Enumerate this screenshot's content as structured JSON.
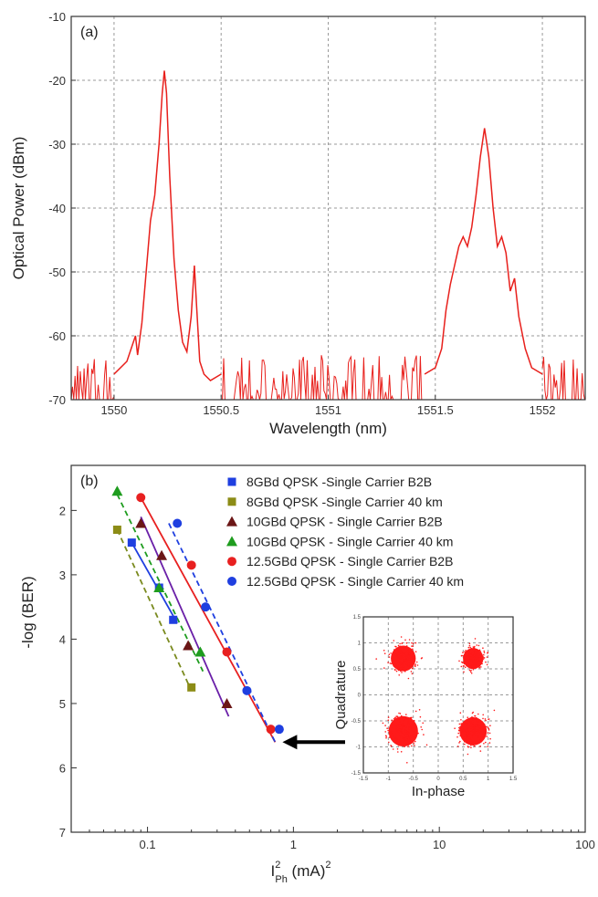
{
  "chart_data": [
    {
      "type": "line",
      "panel_label": "(a)",
      "xlabel": "Wavelength (nm)",
      "ylabel": "Optical Power (dBm)",
      "xlim": [
        1549.8,
        1552.2
      ],
      "ylim": [
        -70,
        -10
      ],
      "xticks": [
        1550,
        1550.5,
        1551,
        1551.5,
        1552
      ],
      "xtick_labels": [
        "1550",
        "1550.5",
        "1551",
        "1551.5",
        "1552"
      ],
      "yticks": [
        -70,
        -60,
        -50,
        -40,
        -30,
        -20,
        -10
      ],
      "ytick_labels": [
        "-70",
        "-60",
        "-50",
        "-40",
        "-30",
        "-20",
        "-10"
      ],
      "grid": true,
      "line_color": "#e8201c",
      "series": [
        {
          "x": [
            1550.0,
            1550.06,
            1550.08,
            1550.1,
            1550.11,
            1550.13,
            1550.15,
            1550.17,
            1550.19,
            1550.21,
            1550.225,
            1550.235,
            1550.245,
            1550.26,
            1550.28,
            1550.3,
            1550.32,
            1550.34,
            1550.36,
            1550.375,
            1550.385,
            1550.4,
            1550.42,
            1550.45,
            1550.5,
            1551.45,
            1551.5,
            1551.53,
            1551.55,
            1551.57,
            1551.59,
            1551.61,
            1551.63,
            1551.65,
            1551.67,
            1551.69,
            1551.71,
            1551.73,
            1551.75,
            1551.77,
            1551.79,
            1551.81,
            1551.83,
            1551.85,
            1551.87,
            1551.89,
            1551.92,
            1551.95,
            1552.0
          ],
          "y": [
            -66,
            -64,
            -62,
            -60,
            -63,
            -58,
            -50,
            -42,
            -38,
            -30,
            -22,
            -18.5,
            -22,
            -35,
            -48,
            -56,
            -61,
            -62.5,
            -57,
            -49,
            -55,
            -64,
            -66,
            -67,
            -66,
            -66,
            -65,
            -62,
            -56,
            -52,
            -49,
            -46,
            -44.5,
            -46,
            -43,
            -38,
            -32,
            -27.5,
            -32,
            -40,
            -46,
            -44.5,
            -47,
            -53,
            -51,
            -57,
            -62,
            -65,
            -66
          ]
        }
      ],
      "noise_floor": [
        -70,
        -63
      ]
    },
    {
      "type": "scatter",
      "panel_label": "(b)",
      "xlabel_main": "I",
      "xlabel_super": "2",
      "xlabel_sub": "Ph",
      "xlabel_tail": " (mA)",
      "xlabel_tail_super": "2",
      "ylabel": "-log (BER)",
      "x_scale": "log",
      "xlim": [
        0.03,
        100
      ],
      "ylim": [
        1.3,
        7
      ],
      "y_inverted": true,
      "xticks": [
        0.1,
        1,
        10,
        100
      ],
      "xtick_labels": [
        "0.1",
        "1",
        "10",
        "100"
      ],
      "yticks": [
        2,
        3,
        4,
        5,
        6,
        7
      ],
      "ytick_labels": [
        "2",
        "3",
        "4",
        "5",
        "6",
        "7"
      ],
      "legend_position": "top-right",
      "series": [
        {
          "name": "8GBd QPSK -Single Carrier B2B",
          "marker": "square",
          "color": "#1f3fe0",
          "line": "solid",
          "x": [
            0.078,
            0.12,
            0.15
          ],
          "y": [
            2.5,
            3.2,
            3.7
          ],
          "fit": [
            [
              0.078,
              2.5
            ],
            [
              0.16,
              3.75
            ]
          ]
        },
        {
          "name": "8GBd QPSK -Single Carrier 40 km",
          "marker": "square",
          "color": "#8c8c16",
          "line": "dashed",
          "x": [
            0.062,
            0.2
          ],
          "y": [
            2.3,
            4.75
          ],
          "fit": [
            [
              0.062,
              2.3
            ],
            [
              0.2,
              4.8
            ]
          ]
        },
        {
          "name": "10GBd QPSK - Single Carrier B2B",
          "marker": "triangle",
          "color": "#6b1616",
          "line": "solid",
          "x": [
            0.09,
            0.125,
            0.19,
            0.35
          ],
          "y": [
            2.2,
            2.7,
            4.1,
            5.0
          ],
          "fit": [
            [
              0.09,
              2.1
            ],
            [
              0.36,
              5.2
            ]
          ]
        },
        {
          "name": "10GBd QPSK - Single Carrier 40 km",
          "marker": "triangle",
          "color": "#1e9c1e",
          "line": "dashed",
          "x": [
            0.062,
            0.12,
            0.23
          ],
          "y": [
            1.7,
            3.2,
            4.2
          ],
          "fit": [
            [
              0.062,
              1.75
            ],
            [
              0.24,
              4.5
            ]
          ]
        },
        {
          "name": "12.5GBd QPSK - Single Carrier B2B",
          "marker": "circle",
          "color": "#e82020",
          "line": "solid",
          "x": [
            0.09,
            0.2,
            0.35,
            0.7
          ],
          "y": [
            1.8,
            2.85,
            4.2,
            5.4
          ],
          "fit": [
            [
              0.09,
              1.8
            ],
            [
              0.75,
              5.6
            ]
          ]
        },
        {
          "name": "12.5GBd QPSK - Single Carrier 40 km",
          "marker": "circle",
          "color": "#1f3fe0",
          "line": "dashed",
          "x": [
            0.16,
            0.25,
            0.48,
            0.8
          ],
          "y": [
            2.2,
            3.5,
            4.8,
            5.4
          ],
          "fit": [
            [
              0.14,
              2.2
            ],
            [
              0.75,
              5.6
            ]
          ]
        }
      ],
      "line_colors": {
        "blue": "#1f3fe0",
        "olive": "#7a8a1e",
        "purple": "#6a1fa8",
        "green": "#1e9c1e",
        "red": "#e82020"
      },
      "inset": {
        "type": "scatter",
        "xlabel": "In-phase",
        "ylabel": "Quadrature",
        "xlim": [
          -1.5,
          1.5
        ],
        "ylim": [
          -1.5,
          1.5
        ],
        "ticks": [
          -1.5,
          -1,
          -0.5,
          0,
          0.5,
          1,
          1.5
        ],
        "tick_labels": [
          "-1.5",
          "-1",
          "-0.5",
          "0",
          "0.5",
          "1",
          "1.5"
        ],
        "color": "#ff1a1a",
        "clusters": [
          {
            "x": -0.7,
            "y": 0.7,
            "spread": 0.22
          },
          {
            "x": 0.7,
            "y": 0.7,
            "spread": 0.18
          },
          {
            "x": -0.7,
            "y": -0.7,
            "spread": 0.26
          },
          {
            "x": 0.7,
            "y": -0.7,
            "spread": 0.24
          }
        ],
        "arrow_to_x": 0.75,
        "arrow_to_y": 5.6
      }
    }
  ]
}
